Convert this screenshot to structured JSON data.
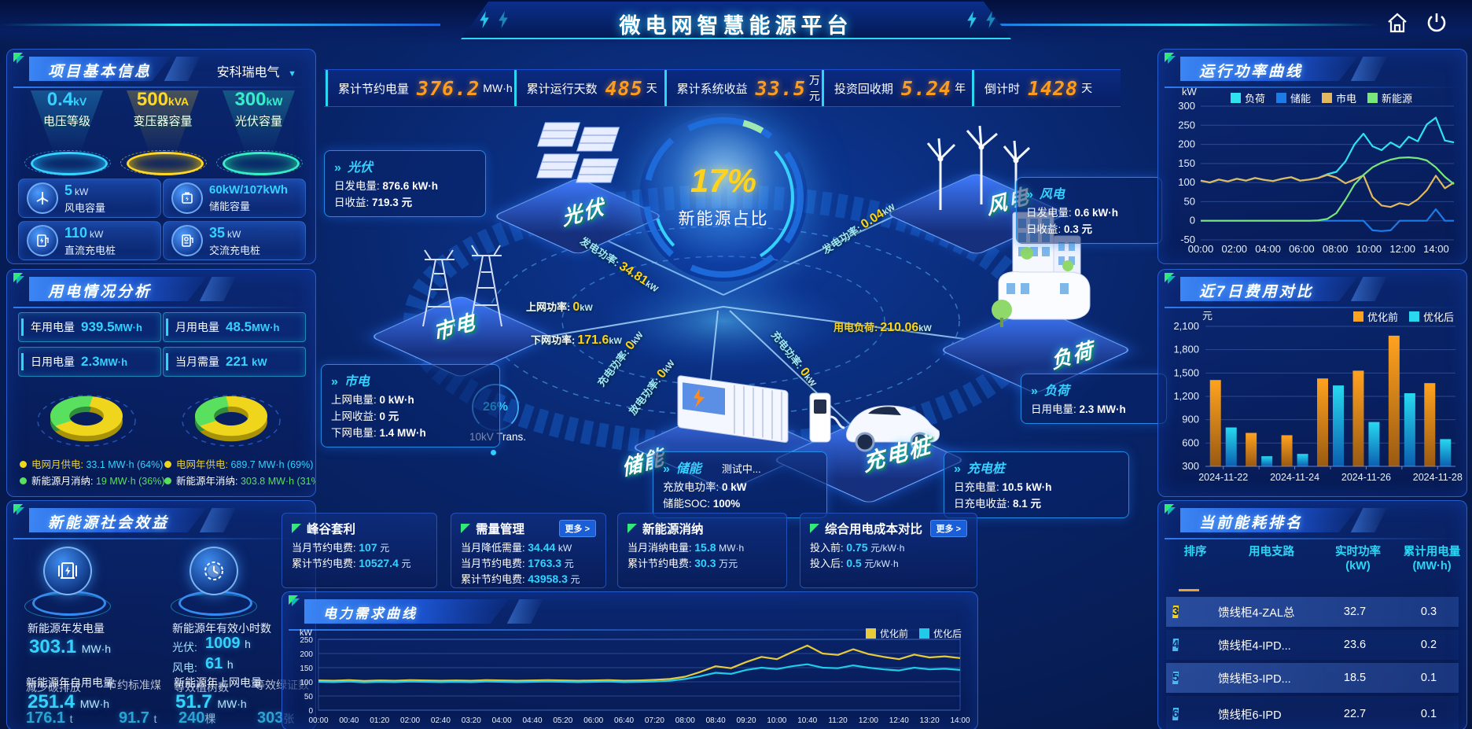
{
  "header": {
    "title": "微电网智慧能源平台"
  },
  "colors": {
    "accent_cyan": "#2bd7f5",
    "accent_yellow": "#ffd21c",
    "accent_orange": "#ff9c1e",
    "accent_green": "#58e05e",
    "panel_border": "#1b55d8"
  },
  "topbar": {
    "items": [
      {
        "label": "累计节约电量",
        "value": "376.2",
        "unit": "MW·h"
      },
      {
        "label": "累计运行天数",
        "value": "485",
        "unit": "天"
      },
      {
        "label": "累计系统收益",
        "value": "33.5",
        "unit": "万元"
      },
      {
        "label": "投资回收期",
        "value": "5.24",
        "unit": "年"
      },
      {
        "label": "倒计时",
        "value": "1428",
        "unit": "天"
      }
    ]
  },
  "project": {
    "title": "项目基本信息",
    "company": "安科瑞电气",
    "cones": [
      {
        "value": "0.4",
        "unit": "kV",
        "label": "电压等级",
        "color": "#35d2ff"
      },
      {
        "value": "500",
        "unit": "kVA",
        "label": "变压器容量",
        "color": "#ffd826"
      },
      {
        "value": "300",
        "unit": "kW",
        "label": "光伏容量",
        "color": "#35eec8"
      }
    ],
    "stats": [
      {
        "value": "5",
        "unit": "kW",
        "label": "风电容量"
      },
      {
        "value": "60kW/107kWh",
        "unit": "",
        "label": "储能容量"
      },
      {
        "value": "110",
        "unit": "kW",
        "label": "直流充电桩"
      },
      {
        "value": "35",
        "unit": "kW",
        "label": "交流充电桩"
      }
    ]
  },
  "usage": {
    "title": "用电情况分析",
    "stats": [
      {
        "label": "年用电量",
        "value": "939.5",
        "unit": "MW·h"
      },
      {
        "label": "月用电量",
        "value": "48.5",
        "unit": "MW·h"
      },
      {
        "label": "日用电量",
        "value": "2.3",
        "unit": "MW·h"
      },
      {
        "label": "当月需量",
        "value": "221",
        "unit": "kW"
      }
    ],
    "donuts": [
      {
        "grid_label": "电网月供电:",
        "grid_value": "33.1 MW·h (64%)",
        "renew_label": "新能源月消纳:",
        "renew_value": "19 MW·h (36%)",
        "grid_pct": 64
      },
      {
        "grid_label": "电网年供电:",
        "grid_value": "689.7 MW·h (69%)",
        "renew_label": "新能源年消纳:",
        "renew_value": "303.8 MW·h (31%)",
        "grid_pct": 69
      }
    ]
  },
  "benefit": {
    "title": "新能源社会效益",
    "gen_label": "新能源年发电量",
    "gen_value": "303.1",
    "gen_unit": "MW·h",
    "hours_label": "新能源年有效小时数",
    "pv_label": "光伏:",
    "pv_value": "1009",
    "pv_unit": "h",
    "wind_label": "风电:",
    "wind_value": "61",
    "wind_unit": "h",
    "self_label": "新能源年自用电量",
    "self_value": "251.4",
    "self_unit": "MW·h",
    "co2_label": "减少碳排放",
    "co2_value": "176.1",
    "co2_unit": "t",
    "coal_label": "节约标准煤",
    "coal_value": "91.7",
    "coal_unit": "t",
    "export_label": "新能源年上网电量",
    "export_value": "51.7",
    "export_unit": "MW·h",
    "tree_label": "等效植树数",
    "tree_value": "240",
    "tree_unit": "棵",
    "cert_label": "等效绿证数",
    "cert_value": "303",
    "cert_unit": "张"
  },
  "diagram": {
    "center_pct": "17%",
    "center_label": "新能源占比",
    "trans_pct": "26%",
    "trans_label": "10kV Trans.",
    "nodes": {
      "pv": "光伏",
      "wind": "风电",
      "grid": "市电",
      "storage": "储能",
      "charger": "充电桩",
      "load": "负荷"
    },
    "flows": {
      "pv_gen": {
        "label": "发电功率:",
        "value": "34.81",
        "unit": "kW"
      },
      "to_grid": {
        "label": "上网功率:",
        "value": "0",
        "unit": "kW"
      },
      "from_grid": {
        "label": "下网功率:",
        "value": "171.6",
        "unit": "kW"
      },
      "wind_gen": {
        "label": "发电功率:",
        "value": "0.04",
        "unit": "kW"
      },
      "load": {
        "label": "用电负荷:",
        "value": "210.06",
        "unit": "kW"
      },
      "charge": {
        "label": "充电功率:",
        "value": "0",
        "unit": "kW"
      },
      "discharge": {
        "label": "放电功率:",
        "value": "0",
        "unit": "kW"
      },
      "ev_charge": {
        "label": "充电功率:",
        "value": "0",
        "unit": "kW"
      }
    },
    "boxes": {
      "pv": {
        "title": "光伏",
        "l0": "日发电量:",
        "v0": "876.6 kW·h",
        "l1": "日收益:",
        "v1": "719.3 元"
      },
      "grid": {
        "title": "市电",
        "l0": "上网电量:",
        "v0": "0 kW·h",
        "l1": "上网收益:",
        "v1": "0 元",
        "l2": "下网电量:",
        "v2": "1.4 MW·h"
      },
      "wind": {
        "title": "风电",
        "l0": "日发电量:",
        "v0": "0.6 kW·h",
        "l1": "日收益:",
        "v1": "0.3 元"
      },
      "load": {
        "title": "负荷",
        "l0": "日用电量:",
        "v0": "2.3 MW·h"
      },
      "storage": {
        "title": "储能",
        "status": "测试中...",
        "l0": "充放电功率:",
        "v0": "0 kW",
        "l1": "储能SOC:",
        "v1": "100%"
      },
      "charger": {
        "title": "充电桩",
        "l0": "日充电量:",
        "v0": "10.5 kW·h",
        "l1": "日充电收益:",
        "v1": "8.1 元"
      }
    }
  },
  "cards": [
    {
      "title": "峰谷套利",
      "lines": [
        {
          "label": "当月节约电费:",
          "value": "107",
          "unit": "元"
        },
        {
          "label": "累计节约电费:",
          "value": "10527.4",
          "unit": "元"
        }
      ]
    },
    {
      "title": "需量管理",
      "more": "更多 >",
      "lines": [
        {
          "label": "当月降低需量:",
          "value": "34.44",
          "unit": "kW"
        },
        {
          "label": "当月节约电费:",
          "value": "1763.3",
          "unit": "元"
        },
        {
          "label": "累计节约电费:",
          "value": "43958.3",
          "unit": "元"
        }
      ]
    },
    {
      "title": "新能源消纳",
      "lines": [
        {
          "label": "当月消纳电量:",
          "value": "15.8",
          "unit": "MW·h"
        },
        {
          "label": "累计节约电费:",
          "value": "30.3",
          "unit": "万元"
        }
      ]
    },
    {
      "title": "综合用电成本对比",
      "more": "更多 >",
      "lines": [
        {
          "label": "投入前:",
          "value": "0.75",
          "unit": "元/kW·h"
        },
        {
          "label": "投入后:",
          "value": "0.5",
          "unit": "元/kW·h"
        }
      ]
    }
  ],
  "ranking": {
    "title": "当前能耗排名",
    "headers": {
      "rank": "排序",
      "branch": "用电支路",
      "power": "实时功率",
      "power_unit": "(kW)",
      "energy": "累计用电量",
      "energy_unit": "(MW·h)"
    },
    "rows": [
      {
        "rank": "3",
        "branch": "馈线柜4-ZAL总",
        "power": "32.7",
        "energy": "0.3",
        "badge": "#f5d01e"
      },
      {
        "rank": "4",
        "branch": "馈线柜4-IPD...",
        "power": "23.6",
        "energy": "0.2",
        "badge": "#4db8f0"
      },
      {
        "rank": "5",
        "branch": "馈线柜3-IPD...",
        "power": "18.5",
        "energy": "0.1",
        "badge": "#4db8f0"
      },
      {
        "rank": "6",
        "branch": "馈线柜6-IPD",
        "power": "22.7",
        "energy": "0.1",
        "badge": "#4db8f0"
      }
    ]
  },
  "chart_data": [
    {
      "id": "run_power",
      "type": "line",
      "title": "运行功率曲线",
      "ylabel": "kW",
      "ylim": [
        -50,
        300
      ],
      "ytick_step": 50,
      "legend_position": "top",
      "x": [
        "00:00",
        "02:00",
        "04:00",
        "06:00",
        "08:00",
        "10:00",
        "12:00",
        "14:00"
      ],
      "series": [
        {
          "name": "负荷",
          "color": "#2fe3ee",
          "values": [
            105,
            100,
            108,
            103,
            110,
            105,
            112,
            107,
            104,
            110,
            114,
            105,
            108,
            112,
            122,
            128,
            155,
            200,
            228,
            195,
            185,
            205,
            192,
            220,
            208,
            252,
            270,
            210,
            205
          ]
        },
        {
          "name": "储能",
          "color": "#1d7be8",
          "values": [
            0,
            0,
            0,
            0,
            0,
            0,
            0,
            0,
            0,
            0,
            0,
            0,
            0,
            0,
            0,
            0,
            0,
            0,
            0,
            -25,
            -27,
            -25,
            0,
            0,
            0,
            0,
            30,
            0,
            0
          ]
        },
        {
          "name": "市电",
          "color": "#e2b95e",
          "values": [
            105,
            100,
            108,
            103,
            110,
            105,
            112,
            107,
            104,
            110,
            114,
            105,
            108,
            112,
            120,
            113,
            98,
            108,
            119,
            62,
            40,
            36,
            46,
            41,
            56,
            80,
            118,
            85,
            100
          ]
        },
        {
          "name": "新能源",
          "color": "#78e87a",
          "values": [
            0,
            0,
            0,
            0,
            0,
            0,
            0,
            0,
            0,
            0,
            0,
            0,
            0,
            1,
            5,
            20,
            55,
            95,
            120,
            140,
            152,
            160,
            165,
            166,
            164,
            158,
            140,
            115,
            96
          ]
        }
      ]
    },
    {
      "id": "cost7",
      "type": "bar",
      "title": "近7日费用对比",
      "ylabel": "元",
      "ylim": [
        300,
        2100
      ],
      "ytick_step": 300,
      "legend_position": "top-right",
      "categories": [
        "2024-11-22",
        "2024-11-23",
        "2024-11-24",
        "2024-11-25",
        "2024-11-26",
        "2024-11-27",
        "2024-11-28"
      ],
      "xtick_every": 2,
      "series": [
        {
          "name": "优化前",
          "color": "#ffa21f",
          "color2": "#9a5a12",
          "values": [
            1410,
            730,
            700,
            1430,
            1530,
            1980,
            1370
          ]
        },
        {
          "name": "优化后",
          "color": "#27d8f0",
          "color2": "#0b5fb0",
          "values": [
            800,
            430,
            460,
            1340,
            870,
            1240,
            650
          ]
        }
      ]
    },
    {
      "id": "demand",
      "type": "line",
      "title": "电力需求曲线",
      "ylabel": "kW",
      "ylim": [
        0,
        250
      ],
      "ytick_step": 50,
      "legend_position": "top-right",
      "x": [
        "00:00",
        "00:40",
        "01:20",
        "02:00",
        "02:40",
        "03:20",
        "04:00",
        "04:40",
        "05:20",
        "06:00",
        "06:40",
        "07:20",
        "08:00",
        "08:40",
        "09:20",
        "10:00",
        "10:40",
        "11:20",
        "12:00",
        "12:40",
        "13:20",
        "14:00"
      ],
      "series": [
        {
          "name": "优化前",
          "color": "#e8cb3a",
          "values": [
            105,
            104,
            106,
            103,
            105,
            104,
            106,
            105,
            104,
            105,
            104,
            106,
            105,
            104,
            105,
            106,
            105,
            104,
            105,
            106,
            104,
            105,
            107,
            110,
            118,
            135,
            155,
            148,
            170,
            188,
            180,
            205,
            228,
            200,
            195,
            215,
            198,
            188,
            180,
            196,
            186,
            190,
            184
          ]
        },
        {
          "name": "优化后",
          "color": "#1ecbe8",
          "values": [
            100,
            99,
            101,
            98,
            100,
            99,
            101,
            100,
            99,
            100,
            99,
            101,
            100,
            99,
            100,
            101,
            100,
            99,
            100,
            101,
            99,
            100,
            101,
            104,
            110,
            120,
            132,
            128,
            142,
            150,
            145,
            155,
            162,
            150,
            148,
            158,
            150,
            144,
            140,
            150,
            144,
            146,
            142
          ]
        }
      ]
    }
  ]
}
